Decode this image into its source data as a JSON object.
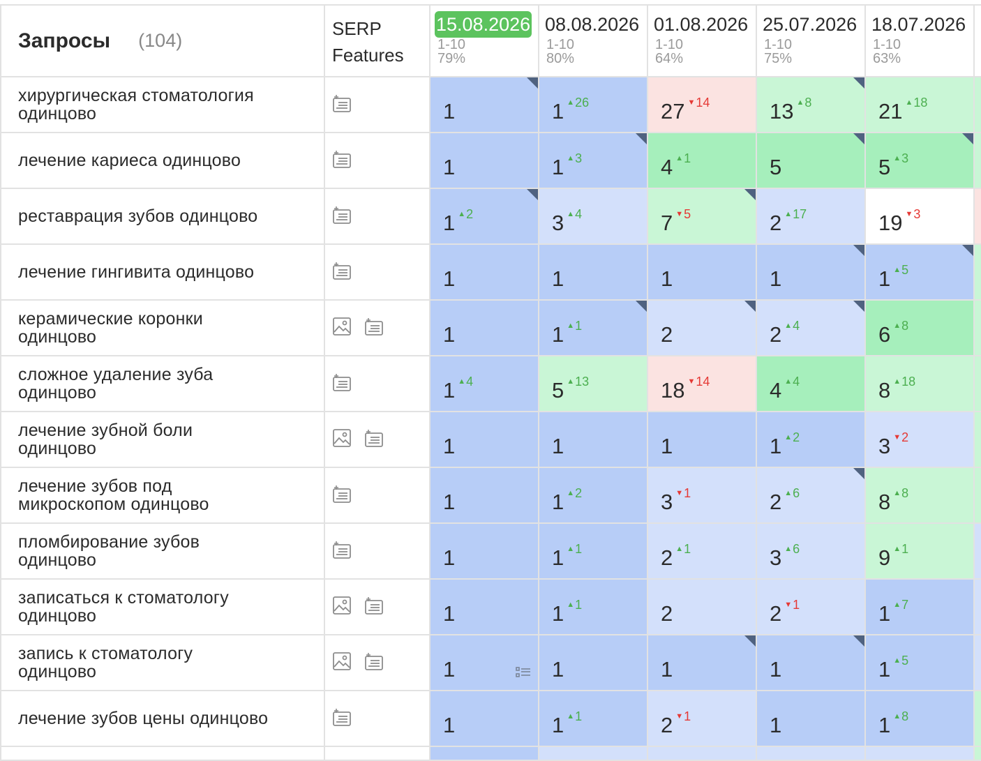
{
  "header": {
    "title": "Запросы",
    "count": "(104)",
    "serp_label_1": "SERP",
    "serp_label_2": "Features",
    "dates": [
      {
        "date": "15.08.2026",
        "range": "1-10",
        "pct": "79%",
        "active": true
      },
      {
        "date": "08.08.2026",
        "range": "1-10",
        "pct": "80%",
        "active": false
      },
      {
        "date": "01.08.2026",
        "range": "1-10",
        "pct": "64%",
        "active": false
      },
      {
        "date": "25.07.2026",
        "range": "1-10",
        "pct": "75%",
        "active": false
      },
      {
        "date": "18.07.2026",
        "range": "1-10",
        "pct": "63%",
        "active": false
      }
    ]
  },
  "colors": {
    "dark": "#b7cdf7",
    "light": "#d3e0fb",
    "green": "#a6efbc",
    "lgreen": "#c9f6d6",
    "pink": "#fbe3e1",
    "white": "#ffffff",
    "active_date": "#5cc35e",
    "up": "#4caf50",
    "down": "#e53935"
  },
  "rows": [
    {
      "keyword": "хирургическая стоматология одинцово",
      "serp": [
        "snippet-icon"
      ],
      "edge": "lgreen",
      "cells": [
        {
          "v": "1",
          "d": "",
          "c": "dark",
          "k": true
        },
        {
          "v": "1",
          "d": "26",
          "dir": "up",
          "c": "dark"
        },
        {
          "v": "27",
          "d": "14",
          "dir": "down",
          "c": "pink"
        },
        {
          "v": "13",
          "d": "8",
          "dir": "up",
          "c": "lgreen",
          "k": true
        },
        {
          "v": "21",
          "d": "18",
          "dir": "up",
          "c": "lgreen"
        }
      ]
    },
    {
      "keyword": "лечение кариеса одинцово",
      "serp": [
        "snippet-icon"
      ],
      "edge": "lgreen",
      "cells": [
        {
          "v": "1",
          "d": "",
          "c": "dark"
        },
        {
          "v": "1",
          "d": "3",
          "dir": "up",
          "c": "dark",
          "k": true
        },
        {
          "v": "4",
          "d": "1",
          "dir": "up",
          "c": "green"
        },
        {
          "v": "5",
          "d": "",
          "c": "green",
          "k": true
        },
        {
          "v": "5",
          "d": "3",
          "dir": "up",
          "c": "green",
          "k": true
        }
      ]
    },
    {
      "keyword": "реставрация зубов одинцово",
      "serp": [
        "snippet-icon"
      ],
      "edge": "pink",
      "cells": [
        {
          "v": "1",
          "d": "2",
          "dir": "up",
          "c": "dark",
          "k": true
        },
        {
          "v": "3",
          "d": "4",
          "dir": "up",
          "c": "light"
        },
        {
          "v": "7",
          "d": "5",
          "dir": "down",
          "c": "lgreen",
          "k": true
        },
        {
          "v": "2",
          "d": "17",
          "dir": "up",
          "c": "light"
        },
        {
          "v": "19",
          "d": "3",
          "dir": "down",
          "c": "white"
        }
      ]
    },
    {
      "keyword": "лечение гингивита одинцово",
      "serp": [
        "snippet-icon"
      ],
      "edge": "lgreen",
      "cells": [
        {
          "v": "1",
          "d": "",
          "c": "dark"
        },
        {
          "v": "1",
          "d": "",
          "c": "dark"
        },
        {
          "v": "1",
          "d": "",
          "c": "dark"
        },
        {
          "v": "1",
          "d": "",
          "c": "dark",
          "k": true
        },
        {
          "v": "1",
          "d": "5",
          "dir": "up",
          "c": "dark",
          "k": true
        }
      ]
    },
    {
      "keyword": "керамические коронки одинцово",
      "serp": [
        "image-icon",
        "snippet-icon"
      ],
      "edge": "lgreen",
      "cells": [
        {
          "v": "1",
          "d": "",
          "c": "dark"
        },
        {
          "v": "1",
          "d": "1",
          "dir": "up",
          "c": "dark",
          "k": true
        },
        {
          "v": "2",
          "d": "",
          "c": "light",
          "k": true
        },
        {
          "v": "2",
          "d": "4",
          "dir": "up",
          "c": "light",
          "k": true
        },
        {
          "v": "6",
          "d": "8",
          "dir": "up",
          "c": "green"
        }
      ]
    },
    {
      "keyword": "сложное удаление зуба одинцово",
      "serp": [
        "snippet-icon"
      ],
      "edge": "lgreen",
      "cells": [
        {
          "v": "1",
          "d": "4",
          "dir": "up",
          "c": "dark"
        },
        {
          "v": "5",
          "d": "13",
          "dir": "up",
          "c": "lgreen"
        },
        {
          "v": "18",
          "d": "14",
          "dir": "down",
          "c": "pink"
        },
        {
          "v": "4",
          "d": "4",
          "dir": "up",
          "c": "green"
        },
        {
          "v": "8",
          "d": "18",
          "dir": "up",
          "c": "lgreen"
        }
      ]
    },
    {
      "keyword": "лечение зубной боли одинцово",
      "serp": [
        "image-icon",
        "snippet-icon"
      ],
      "edge": "lgreen",
      "cells": [
        {
          "v": "1",
          "d": "",
          "c": "dark"
        },
        {
          "v": "1",
          "d": "",
          "c": "dark"
        },
        {
          "v": "1",
          "d": "",
          "c": "dark"
        },
        {
          "v": "1",
          "d": "2",
          "dir": "up",
          "c": "dark"
        },
        {
          "v": "3",
          "d": "2",
          "dir": "down",
          "c": "light"
        }
      ]
    },
    {
      "keyword": "лечение зубов под микроскопом одинцово",
      "serp": [
        "snippet-icon"
      ],
      "edge": "lgreen",
      "cells": [
        {
          "v": "1",
          "d": "",
          "c": "dark"
        },
        {
          "v": "1",
          "d": "2",
          "dir": "up",
          "c": "dark"
        },
        {
          "v": "3",
          "d": "1",
          "dir": "down",
          "c": "light"
        },
        {
          "v": "2",
          "d": "6",
          "dir": "up",
          "c": "light",
          "k": true
        },
        {
          "v": "8",
          "d": "8",
          "dir": "up",
          "c": "lgreen"
        }
      ]
    },
    {
      "keyword": "пломбирование зубов одинцово",
      "serp": [
        "snippet-icon"
      ],
      "edge": "light",
      "cells": [
        {
          "v": "1",
          "d": "",
          "c": "dark"
        },
        {
          "v": "1",
          "d": "1",
          "dir": "up",
          "c": "dark"
        },
        {
          "v": "2",
          "d": "1",
          "dir": "up",
          "c": "light"
        },
        {
          "v": "3",
          "d": "6",
          "dir": "up",
          "c": "light"
        },
        {
          "v": "9",
          "d": "1",
          "dir": "up",
          "c": "lgreen"
        }
      ]
    },
    {
      "keyword": "записаться к стоматологу одинцово",
      "serp": [
        "image-icon",
        "snippet-icon"
      ],
      "edge": "light",
      "cells": [
        {
          "v": "1",
          "d": "",
          "c": "dark"
        },
        {
          "v": "1",
          "d": "1",
          "dir": "up",
          "c": "dark"
        },
        {
          "v": "2",
          "d": "",
          "c": "light"
        },
        {
          "v": "2",
          "d": "1",
          "dir": "down",
          "c": "light"
        },
        {
          "v": "1",
          "d": "7",
          "dir": "up",
          "c": "dark"
        }
      ]
    },
    {
      "keyword": "запись к стоматологу одинцово",
      "serp": [
        "image-icon",
        "snippet-icon"
      ],
      "edge": "light",
      "cells": [
        {
          "v": "1",
          "d": "",
          "c": "dark",
          "list": true
        },
        {
          "v": "1",
          "d": "",
          "c": "dark"
        },
        {
          "v": "1",
          "d": "",
          "c": "dark",
          "k": true
        },
        {
          "v": "1",
          "d": "",
          "c": "dark",
          "k": true
        },
        {
          "v": "1",
          "d": "5",
          "dir": "up",
          "c": "dark"
        }
      ]
    },
    {
      "keyword": "лечение зубов цены одинцово",
      "serp": [
        "snippet-icon"
      ],
      "edge": "lgreen",
      "cells": [
        {
          "v": "1",
          "d": "",
          "c": "dark"
        },
        {
          "v": "1",
          "d": "1",
          "dir": "up",
          "c": "dark"
        },
        {
          "v": "2",
          "d": "1",
          "dir": "down",
          "c": "light"
        },
        {
          "v": "1",
          "d": "",
          "c": "dark"
        },
        {
          "v": "1",
          "d": "8",
          "dir": "up",
          "c": "dark"
        }
      ]
    }
  ]
}
